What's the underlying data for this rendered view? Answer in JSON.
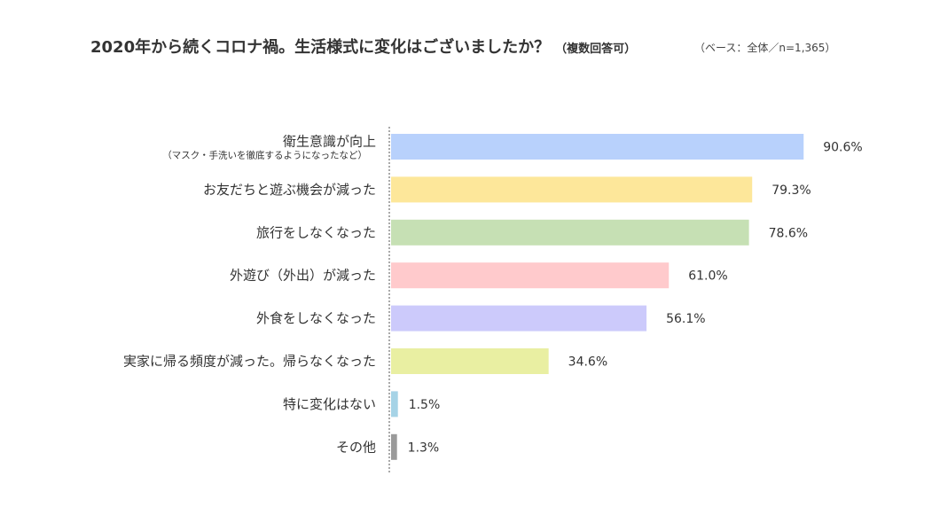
{
  "title": "2020年から続くコロナ禍。生活様式に変化はございましたか？",
  "title_note": "（複数回答可）",
  "base_note": "（ベース：全体／n=1,365）",
  "chart_data": {
    "type": "bar",
    "orientation": "horizontal",
    "title": "2020年から続くコロナ禍。生活様式に変化はございましたか？",
    "categories": [
      "衛生意識が向上",
      "お友だちと遊ぶ機会が減った",
      "旅行をしなくなった",
      "外遊び（外出）が減った",
      "外食をしなくなった",
      "実家に帰る頻度が減った。帰らなくなった",
      "特に変化はない",
      "その他"
    ],
    "category_notes": [
      "（マスク・手洗いを徹底するようになったなど）",
      "",
      "",
      "",
      "",
      "",
      "",
      ""
    ],
    "values": [
      90.6,
      79.3,
      78.6,
      61.0,
      56.1,
      34.6,
      1.5,
      1.3
    ],
    "value_labels": [
      "90.6%",
      "79.3%",
      "78.6%",
      "61.0%",
      "56.1%",
      "34.6%",
      "1.5%",
      "1.3%"
    ],
    "unit": "%",
    "xlim": [
      0,
      100
    ],
    "colors": [
      "#b8d1fc",
      "#fde79a",
      "#c6e0b4",
      "#ffcacc",
      "#cccafb",
      "#e9efa2",
      "#a6d3e6",
      "#9a9a9a"
    ],
    "grid": false,
    "legend": "none"
  }
}
